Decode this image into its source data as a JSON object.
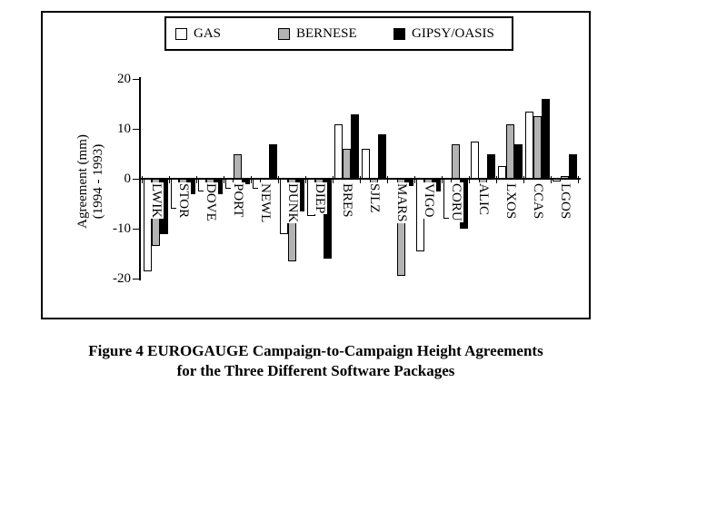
{
  "figure": {
    "caption_line1": "Figure 4  EUROGAUGE Campaign-to-Campaign Height Agreements",
    "caption_line2": "for the Three Different Software Packages"
  },
  "legend": {
    "items": [
      {
        "label": "GAS",
        "color": "#ffffff"
      },
      {
        "label": "BERNESE",
        "color": "#b3b3b3"
      },
      {
        "label": "GIPSY/OASIS",
        "color": "#000000"
      }
    ]
  },
  "y_axis": {
    "title_line1": "Agreement (mm)",
    "title_line2": "(1994 - 1993)"
  },
  "chart_data": {
    "type": "bar",
    "title": "EUROGAUGE Campaign-to-Campaign Height Agreements for the Three Different Software Packages",
    "xlabel": "",
    "ylabel": "Agreement (mm) (1994 - 1993)",
    "ylim": [
      -20,
      20
    ],
    "yticks": [
      20,
      10,
      0,
      -10,
      -20
    ],
    "grid": false,
    "legend_position": "top",
    "categories": [
      "LWIK",
      "STOR",
      "DOVE",
      "PORT",
      "NEWL",
      "DUNK",
      "DIEP",
      "BRES",
      "SJLZ",
      "MARS",
      "VIGO",
      "CORU",
      "ALIC",
      "LXOS",
      "CCAS",
      "LGOS"
    ],
    "series": [
      {
        "name": "GAS",
        "color": "#ffffff",
        "values": [
          -18.5,
          -6,
          -2.5,
          -2,
          -2,
          -11,
          -7.5,
          11,
          6,
          0,
          -14.5,
          -8,
          7.5,
          2.5,
          13.5,
          -0.5
        ]
      },
      {
        "name": "BERNESE",
        "color": "#b3b3b3",
        "values": [
          -13.5,
          -2.5,
          -7.5,
          5,
          0,
          -16.5,
          -2,
          6,
          -2,
          -19.5,
          -1.5,
          7,
          -1.5,
          11,
          12.5,
          0.5
        ]
      },
      {
        "name": "GIPSY/OASIS",
        "color": "#000000",
        "values": [
          -11,
          -3,
          -3,
          -1,
          7,
          -6.5,
          -16,
          13,
          9,
          -1.5,
          -2.5,
          -10,
          5,
          7,
          16,
          5
        ]
      }
    ]
  }
}
